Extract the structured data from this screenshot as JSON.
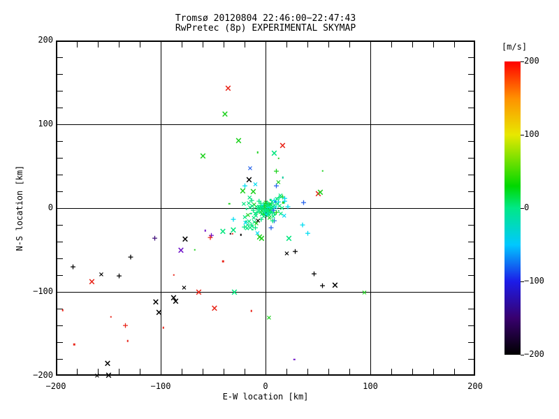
{
  "chart_data": {
    "type": "scatter",
    "title": "Tromsø 20120804 22:46:00−22:47:43",
    "subtitle": "RwPretec (8p) EXPERIMENTAL SKYMAP",
    "xlabel": "E-W location [km]",
    "ylabel": "N-S location [km]",
    "xlim": [
      -200,
      200
    ],
    "ylim": [
      -200,
      200
    ],
    "axis": {
      "min": -200,
      "max": 200,
      "major_step": 100,
      "minor_step": 20
    },
    "grid_lines": [
      -100,
      0,
      100
    ],
    "x_ticks": [
      {
        "v": -200,
        "label": "−200"
      },
      {
        "v": -100,
        "label": "−100"
      },
      {
        "v": 0,
        "label": "0"
      },
      {
        "v": 100,
        "label": "100"
      },
      {
        "v": 200,
        "label": "200"
      }
    ],
    "y_ticks": [
      {
        "v": 200,
        "label": "200"
      },
      {
        "v": 100,
        "label": "100"
      },
      {
        "v": 0,
        "label": "0"
      },
      {
        "v": -100,
        "label": "−100"
      },
      {
        "v": -200,
        "label": "−200"
      }
    ],
    "colorbar": {
      "label": "[m/s]",
      "min": -200,
      "max": 200,
      "ticks": [
        {
          "v": 200,
          "label": "200"
        },
        {
          "v": 100,
          "label": "100"
        },
        {
          "v": 0,
          "label": "0"
        },
        {
          "v": -100,
          "label": "−100"
        },
        {
          "v": -200,
          "label": "−200"
        }
      ],
      "stops": [
        {
          "v": -200,
          "c": "#000000"
        },
        {
          "v": -150,
          "c": "#38006e"
        },
        {
          "v": -100,
          "c": "#1c1ce8"
        },
        {
          "v": -50,
          "c": "#00c8ff"
        },
        {
          "v": 0,
          "c": "#00e887"
        },
        {
          "v": 30,
          "c": "#00d800"
        },
        {
          "v": 100,
          "c": "#e8e800"
        },
        {
          "v": 150,
          "c": "#ff9000"
        },
        {
          "v": 200,
          "c": "#ff0000"
        }
      ]
    },
    "palette": {
      "r": "#e82418",
      "k": "#000000",
      "g": "#1ed11e",
      "s": "#00e67d",
      "c": "#00dcf0",
      "b": "#2563eb",
      "p": "#6e10c8",
      "d": "#3d0a78",
      "y": "#b8d400",
      "t": "#00c896"
    },
    "marker_legend": {
      "X": "large x-symbol",
      "x": "small x-symbol",
      "+": "plus",
      ".": "dot"
    },
    "points": [
      [
        -37,
        144,
        "r",
        "X"
      ],
      [
        -40,
        113,
        "g",
        "X"
      ],
      [
        -27,
        82,
        "g",
        "X"
      ],
      [
        -61,
        63,
        "g",
        "X"
      ],
      [
        -9,
        68,
        "g",
        "."
      ],
      [
        15,
        76,
        "r",
        "X"
      ],
      [
        7,
        67,
        "s",
        "X"
      ],
      [
        11,
        61,
        "g",
        "."
      ],
      [
        -16,
        48,
        "b",
        "x"
      ],
      [
        9,
        46,
        "g",
        "+"
      ],
      [
        53,
        46,
        "g",
        "."
      ],
      [
        49,
        18,
        "r",
        "X"
      ],
      [
        51,
        20,
        "g",
        "X"
      ],
      [
        17,
        10,
        "c",
        "+"
      ],
      [
        35,
        8,
        "b",
        "+"
      ],
      [
        -36,
        7,
        "g",
        "."
      ],
      [
        -59,
        -25,
        "p",
        "."
      ],
      [
        -42,
        -27,
        "s",
        "X"
      ],
      [
        -35,
        -29,
        "k",
        "."
      ],
      [
        -53,
        -31,
        "p",
        "+"
      ],
      [
        -54,
        -33,
        "r",
        "+"
      ],
      [
        -78,
        -36,
        "k",
        "X"
      ],
      [
        -107,
        -34,
        "d",
        "+"
      ],
      [
        -82,
        -49,
        "p",
        "X"
      ],
      [
        -69,
        -48,
        "g",
        "."
      ],
      [
        -130,
        -57,
        "k",
        "+"
      ],
      [
        -42,
        -62,
        "r",
        "."
      ],
      [
        34,
        -18,
        "c",
        "+"
      ],
      [
        39,
        -28,
        "c",
        "+"
      ],
      [
        21,
        -35,
        "s",
        "X"
      ],
      [
        19,
        -53,
        "k",
        "x"
      ],
      [
        27,
        -50,
        "k",
        "+"
      ],
      [
        -185,
        -68,
        "k",
        "+"
      ],
      [
        -158,
        -78,
        "k",
        "x"
      ],
      [
        -141,
        -79,
        "k",
        "+"
      ],
      [
        -167,
        -87,
        "r",
        "X"
      ],
      [
        -89,
        -78,
        "r",
        "."
      ],
      [
        -79,
        -94,
        "k",
        "x"
      ],
      [
        -65,
        -99,
        "r",
        "X"
      ],
      [
        -31,
        -99,
        "s",
        "X"
      ],
      [
        -89,
        -106,
        "k",
        "X"
      ],
      [
        -87,
        -110,
        "k",
        "X"
      ],
      [
        -106,
        -111,
        "k",
        "X"
      ],
      [
        -103,
        -123,
        "k",
        "X"
      ],
      [
        -50,
        -118,
        "r",
        "X"
      ],
      [
        -15,
        -121,
        "r",
        "."
      ],
      [
        -195,
        -120,
        "r",
        "."
      ],
      [
        -149,
        -128,
        "r",
        "."
      ],
      [
        -135,
        -138,
        "r",
        "+"
      ],
      [
        -99,
        -141,
        "r",
        "."
      ],
      [
        -133,
        -157,
        "r",
        "."
      ],
      [
        -184,
        -161,
        "r",
        "."
      ],
      [
        -152,
        -184,
        "k",
        "X"
      ],
      [
        -162,
        -199,
        "k",
        "x"
      ],
      [
        -151,
        -198,
        "k",
        "X"
      ],
      [
        45,
        -77,
        "k",
        "+"
      ],
      [
        53,
        -91,
        "k",
        "+"
      ],
      [
        65,
        -91,
        "k",
        "X"
      ],
      [
        93,
        -100,
        "g",
        "x"
      ],
      [
        2,
        -130,
        "g",
        "x"
      ],
      [
        26,
        -179,
        "p",
        "."
      ],
      [
        -17,
        35,
        "k",
        "X"
      ],
      [
        15,
        15,
        "g",
        "+"
      ],
      [
        11,
        32,
        "g",
        "x"
      ],
      [
        15,
        38,
        "t",
        "."
      ],
      [
        9,
        28,
        "b",
        "+"
      ],
      [
        -21,
        28,
        "c",
        "+"
      ],
      [
        -23,
        22,
        "g",
        "X"
      ],
      [
        -13,
        21,
        "g",
        "X"
      ],
      [
        -11,
        29,
        "c",
        "x"
      ],
      [
        4,
        -22,
        "b",
        "+"
      ],
      [
        -32,
        -12,
        "c",
        "+"
      ],
      [
        -32,
        -25,
        "s",
        "X"
      ],
      [
        -33,
        -29,
        "r",
        "."
      ],
      [
        -25,
        -30,
        "k",
        "."
      ],
      [
        -7,
        -33,
        "g",
        "X"
      ],
      [
        -5,
        -35,
        "g",
        "X"
      ],
      [
        -9,
        -29,
        "c",
        "x"
      ],
      [
        7,
        -13,
        "b",
        "+"
      ],
      [
        17,
        13,
        "c",
        "+"
      ],
      [
        20,
        3,
        "c",
        "+"
      ],
      [
        3,
        7,
        "y",
        "."
      ],
      [
        8,
        9,
        "b",
        "."
      ],
      [
        11,
        9,
        "c",
        "+"
      ],
      [
        -2,
        1,
        "s",
        "x"
      ],
      [
        -1.2,
        0.4,
        "s",
        "+"
      ],
      [
        -3.1,
        1.8,
        "s",
        "x"
      ],
      [
        -0.5,
        2.2,
        "g",
        "x"
      ],
      [
        -2.8,
        -0.7,
        "s",
        "."
      ],
      [
        -1,
        -1.5,
        "s",
        "x"
      ],
      [
        0.3,
        0.8,
        "s",
        "+"
      ],
      [
        -4.2,
        0.2,
        "g",
        "x"
      ],
      [
        -1.7,
        3,
        "s",
        "x"
      ],
      [
        0.9,
        -0.9,
        "s",
        "."
      ],
      [
        -3.6,
        2.6,
        "c",
        "x"
      ],
      [
        -0.1,
        -2.4,
        "s",
        "+"
      ],
      [
        -5,
        1.3,
        "s",
        "x"
      ],
      [
        1.4,
        1.7,
        "s",
        "x"
      ],
      [
        -2.4,
        4.1,
        "g",
        "+"
      ],
      [
        -4.7,
        -1.9,
        "s",
        "x"
      ],
      [
        0.6,
        3.5,
        "s",
        "."
      ],
      [
        -1.4,
        -3.3,
        "s",
        "x"
      ],
      [
        2,
        0.1,
        "s",
        "+"
      ],
      [
        -5.8,
        2.9,
        "s",
        "x"
      ],
      [
        -0.8,
        5,
        "g",
        "x"
      ],
      [
        1.1,
        -3.9,
        "s",
        "."
      ],
      [
        -3.9,
        -3,
        "s",
        "x"
      ],
      [
        2.6,
        2.4,
        "c",
        "+"
      ],
      [
        -6.4,
        -0.4,
        "s",
        "x"
      ],
      [
        0,
        4.4,
        "s",
        "x"
      ],
      [
        -2.2,
        -4.6,
        "s",
        "+"
      ],
      [
        3.1,
        -1.4,
        "g",
        "x"
      ],
      [
        -5.3,
        4.6,
        "s",
        "."
      ],
      [
        1.8,
        4.8,
        "s",
        "x"
      ],
      [
        -7,
        1.7,
        "s",
        "x"
      ],
      [
        -0.3,
        -5.5,
        "s",
        "+"
      ],
      [
        2.3,
        -4.4,
        "s",
        "x"
      ],
      [
        -4.4,
        5.4,
        "c",
        "."
      ],
      [
        3.7,
        1,
        "s",
        "x"
      ],
      [
        -6.1,
        -4.2,
        "g",
        "x"
      ],
      [
        0.8,
        5.8,
        "s",
        "+"
      ],
      [
        -1.9,
        5.9,
        "s",
        "x"
      ],
      [
        4.2,
        -2.8,
        "s",
        "."
      ],
      [
        -7.6,
        -2.2,
        "s",
        "x"
      ],
      [
        1.6,
        -5.9,
        "s",
        "x"
      ],
      [
        -3.4,
        -5.8,
        "g",
        "+"
      ],
      [
        4.8,
        0.6,
        "s",
        "x"
      ],
      [
        -8.1,
        3.8,
        "s",
        "."
      ],
      [
        2.9,
        5.3,
        "s",
        "x"
      ],
      [
        -0.6,
        -6.8,
        "c",
        "x"
      ],
      [
        5.3,
        -4.1,
        "s",
        "+"
      ],
      [
        -8.8,
        0.6,
        "s",
        "x"
      ],
      [
        3.4,
        6.1,
        "g",
        "x"
      ],
      [
        -2.7,
        6.8,
        "s",
        "."
      ],
      [
        5.9,
        2.1,
        "s",
        "x"
      ],
      [
        -9.4,
        -3.6,
        "s",
        "+"
      ],
      [
        1.9,
        -7.2,
        "s",
        "x"
      ],
      [
        -4.9,
        -7,
        "s",
        "x"
      ],
      [
        6.4,
        -0.8,
        "b",
        "+"
      ],
      [
        -10.1,
        2.4,
        "s",
        "x"
      ],
      [
        4.4,
        7,
        "s",
        "."
      ],
      [
        -1.1,
        7.7,
        "g",
        "x"
      ],
      [
        6.9,
        3.9,
        "s",
        "x"
      ],
      [
        -5.9,
        7.4,
        "s",
        "+"
      ],
      [
        -11,
        -5.5,
        "s",
        "x"
      ],
      [
        7.5,
        -6.2,
        "s",
        "."
      ],
      [
        -12.2,
        5,
        "g",
        "x"
      ],
      [
        5,
        8.5,
        "s",
        "x"
      ],
      [
        -13,
        -1.2,
        "s",
        "+"
      ],
      [
        8.2,
        1.5,
        "c",
        "x"
      ],
      [
        -3,
        -9,
        "s",
        "x"
      ],
      [
        0.5,
        9.5,
        "s",
        "."
      ],
      [
        -14,
        3.5,
        "s",
        "x"
      ],
      [
        9,
        -3.5,
        "g",
        "+"
      ],
      [
        -10.5,
        -8.5,
        "s",
        "x"
      ],
      [
        6,
        -9.5,
        "s",
        "x"
      ],
      [
        -15.2,
        -4.8,
        "s",
        "."
      ],
      [
        10,
        5.5,
        "s",
        "x"
      ],
      [
        -7.5,
        9.8,
        "s",
        "+"
      ],
      [
        2.5,
        -10.5,
        "g",
        "x"
      ],
      [
        -16,
        1.5,
        "s",
        "x"
      ],
      [
        11,
        -1.5,
        "s",
        "."
      ],
      [
        -12.5,
        -11,
        "s",
        "x"
      ],
      [
        7,
        10.5,
        "c",
        "+"
      ],
      [
        -17.3,
        6.5,
        "s",
        "x"
      ],
      [
        12,
        3,
        "s",
        "x"
      ],
      [
        -5.5,
        -12,
        "s",
        "+"
      ],
      [
        3.5,
        11.5,
        "s",
        "."
      ],
      [
        -18,
        -7.5,
        "g",
        "x"
      ],
      [
        13.2,
        -5.5,
        "s",
        "x"
      ],
      [
        -14.5,
        10.5,
        "s",
        "+"
      ],
      [
        9.5,
        12,
        "s",
        "x"
      ],
      [
        -19.5,
        0.5,
        "s",
        "."
      ],
      [
        14.5,
        1,
        "s",
        "x"
      ],
      [
        -8.5,
        -14,
        "k",
        "x"
      ],
      [
        5.5,
        -13.5,
        "s",
        "+"
      ],
      [
        -21,
        -10,
        "s",
        "x"
      ],
      [
        15.5,
        8,
        "g",
        "."
      ],
      [
        -16.5,
        13,
        "s",
        "x"
      ],
      [
        11.5,
        14,
        "s",
        "+"
      ],
      [
        -22,
        5.5,
        "s",
        "x"
      ],
      [
        16.5,
        -8.5,
        "c",
        "x"
      ],
      [
        -20,
        -14.5,
        "s",
        "."
      ],
      [
        13,
        15.5,
        "s",
        "x"
      ],
      [
        -12,
        -16,
        "s",
        "x"
      ],
      [
        -15,
        -18,
        "s",
        "+"
      ],
      [
        -10,
        -17.5,
        "g",
        "x"
      ],
      [
        -17,
        -15,
        "s",
        "x"
      ],
      [
        -13.5,
        -20,
        "s",
        "."
      ],
      [
        -18.5,
        -19.5,
        "s",
        "x"
      ],
      [
        -11,
        -21.5,
        "s",
        "+"
      ],
      [
        -16,
        -22.5,
        "s",
        "x"
      ],
      [
        -20.5,
        -17,
        "c",
        "x"
      ],
      [
        -14,
        -24,
        "s",
        "."
      ],
      [
        -19,
        -23,
        "s",
        "x"
      ],
      [
        -21.5,
        -21,
        "s",
        "+"
      ]
    ]
  }
}
